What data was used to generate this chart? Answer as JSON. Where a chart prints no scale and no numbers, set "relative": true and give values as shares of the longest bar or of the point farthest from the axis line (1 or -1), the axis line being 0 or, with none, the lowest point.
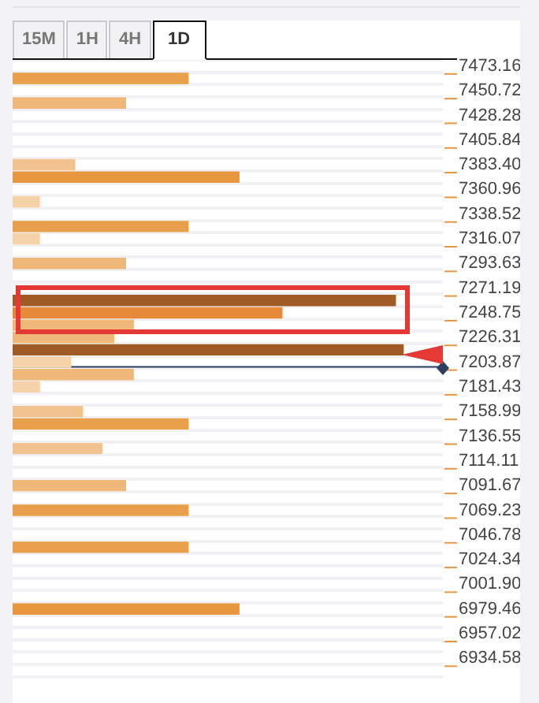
{
  "chart_data": {
    "type": "bar",
    "orientation": "horizontal",
    "relative": true,
    "annotations": [
      "15M",
      "1H",
      "4H",
      "1D"
    ],
    "categories": [
      "7473.16",
      null,
      "7450.72",
      null,
      "7428.28",
      null,
      "7405.84",
      null,
      "7383.40",
      null,
      "7360.96",
      null,
      "7338.52",
      null,
      "7316.07",
      null,
      "7293.63",
      null,
      "7271.19",
      null,
      "7248.75",
      null,
      "7226.31",
      null,
      "7203.87",
      null,
      "7181.43",
      null,
      "7158.99",
      null,
      "7136.55",
      null,
      "7114.11",
      null,
      "7091.67",
      null,
      "7069.23",
      null,
      "7046.78",
      null,
      "7024.34",
      null,
      "7001.90",
      null,
      "6979.46",
      null,
      "6957.02",
      null,
      "6934.58",
      null
    ],
    "values": [
      null,
      0.45,
      null,
      0.29,
      null,
      null,
      null,
      null,
      0.16,
      0.58,
      null,
      0.07,
      null,
      0.45,
      0.07,
      null,
      0.29,
      null,
      null,
      0.98,
      0.69,
      0.31,
      0.26,
      1,
      0.15,
      0.31,
      0.07,
      null,
      0.18,
      0.45,
      null,
      0.23,
      null,
      null,
      0.29,
      null,
      0.45,
      null,
      null,
      0.45,
      null,
      null,
      null,
      null,
      0.58,
      null,
      null,
      null,
      null,
      null
    ],
    "colors": [
      "#e8a04a",
      "#e8a04a",
      "#efb778",
      "#efb778",
      "#e8a04a",
      "#e8a04a",
      "#e8a04a",
      "#e8a04a",
      "#f2c38f",
      "#e8963f",
      "#e8a04a",
      "#f5d2a8",
      "#e8a04a",
      "#e8a04a",
      "#f5d2a8",
      "#e8a04a",
      "#efb778",
      "#e8a04a",
      "#e8a04a",
      "#a05a24",
      "#e68a3a",
      "#efb778",
      "#efb778",
      "#a05a24",
      "#f5d2a8",
      "#efb778",
      "#f5d2a8",
      "#e8a04a",
      "#f2c38f",
      "#e8a04a",
      "#e8a04a",
      "#f2c38f",
      "#e8a04a",
      "#e8a04a",
      "#efb778",
      "#e8a04a",
      "#e8a04a",
      "#e8a04a",
      "#e8a04a",
      "#e8a04a",
      "#e8a04a",
      "#e8a04a",
      "#e8a04a",
      "#e8a04a",
      "#e8963f",
      "#e8a04a",
      "#e8a04a",
      "#e8a04a",
      "#e8a04a",
      "#e8a04a"
    ],
    "ref_lines": [
      {
        "axis": "y",
        "value": "7203.87",
        "color": "#2c3e5c"
      }
    ],
    "grid": "y",
    "legend": false
  }
}
